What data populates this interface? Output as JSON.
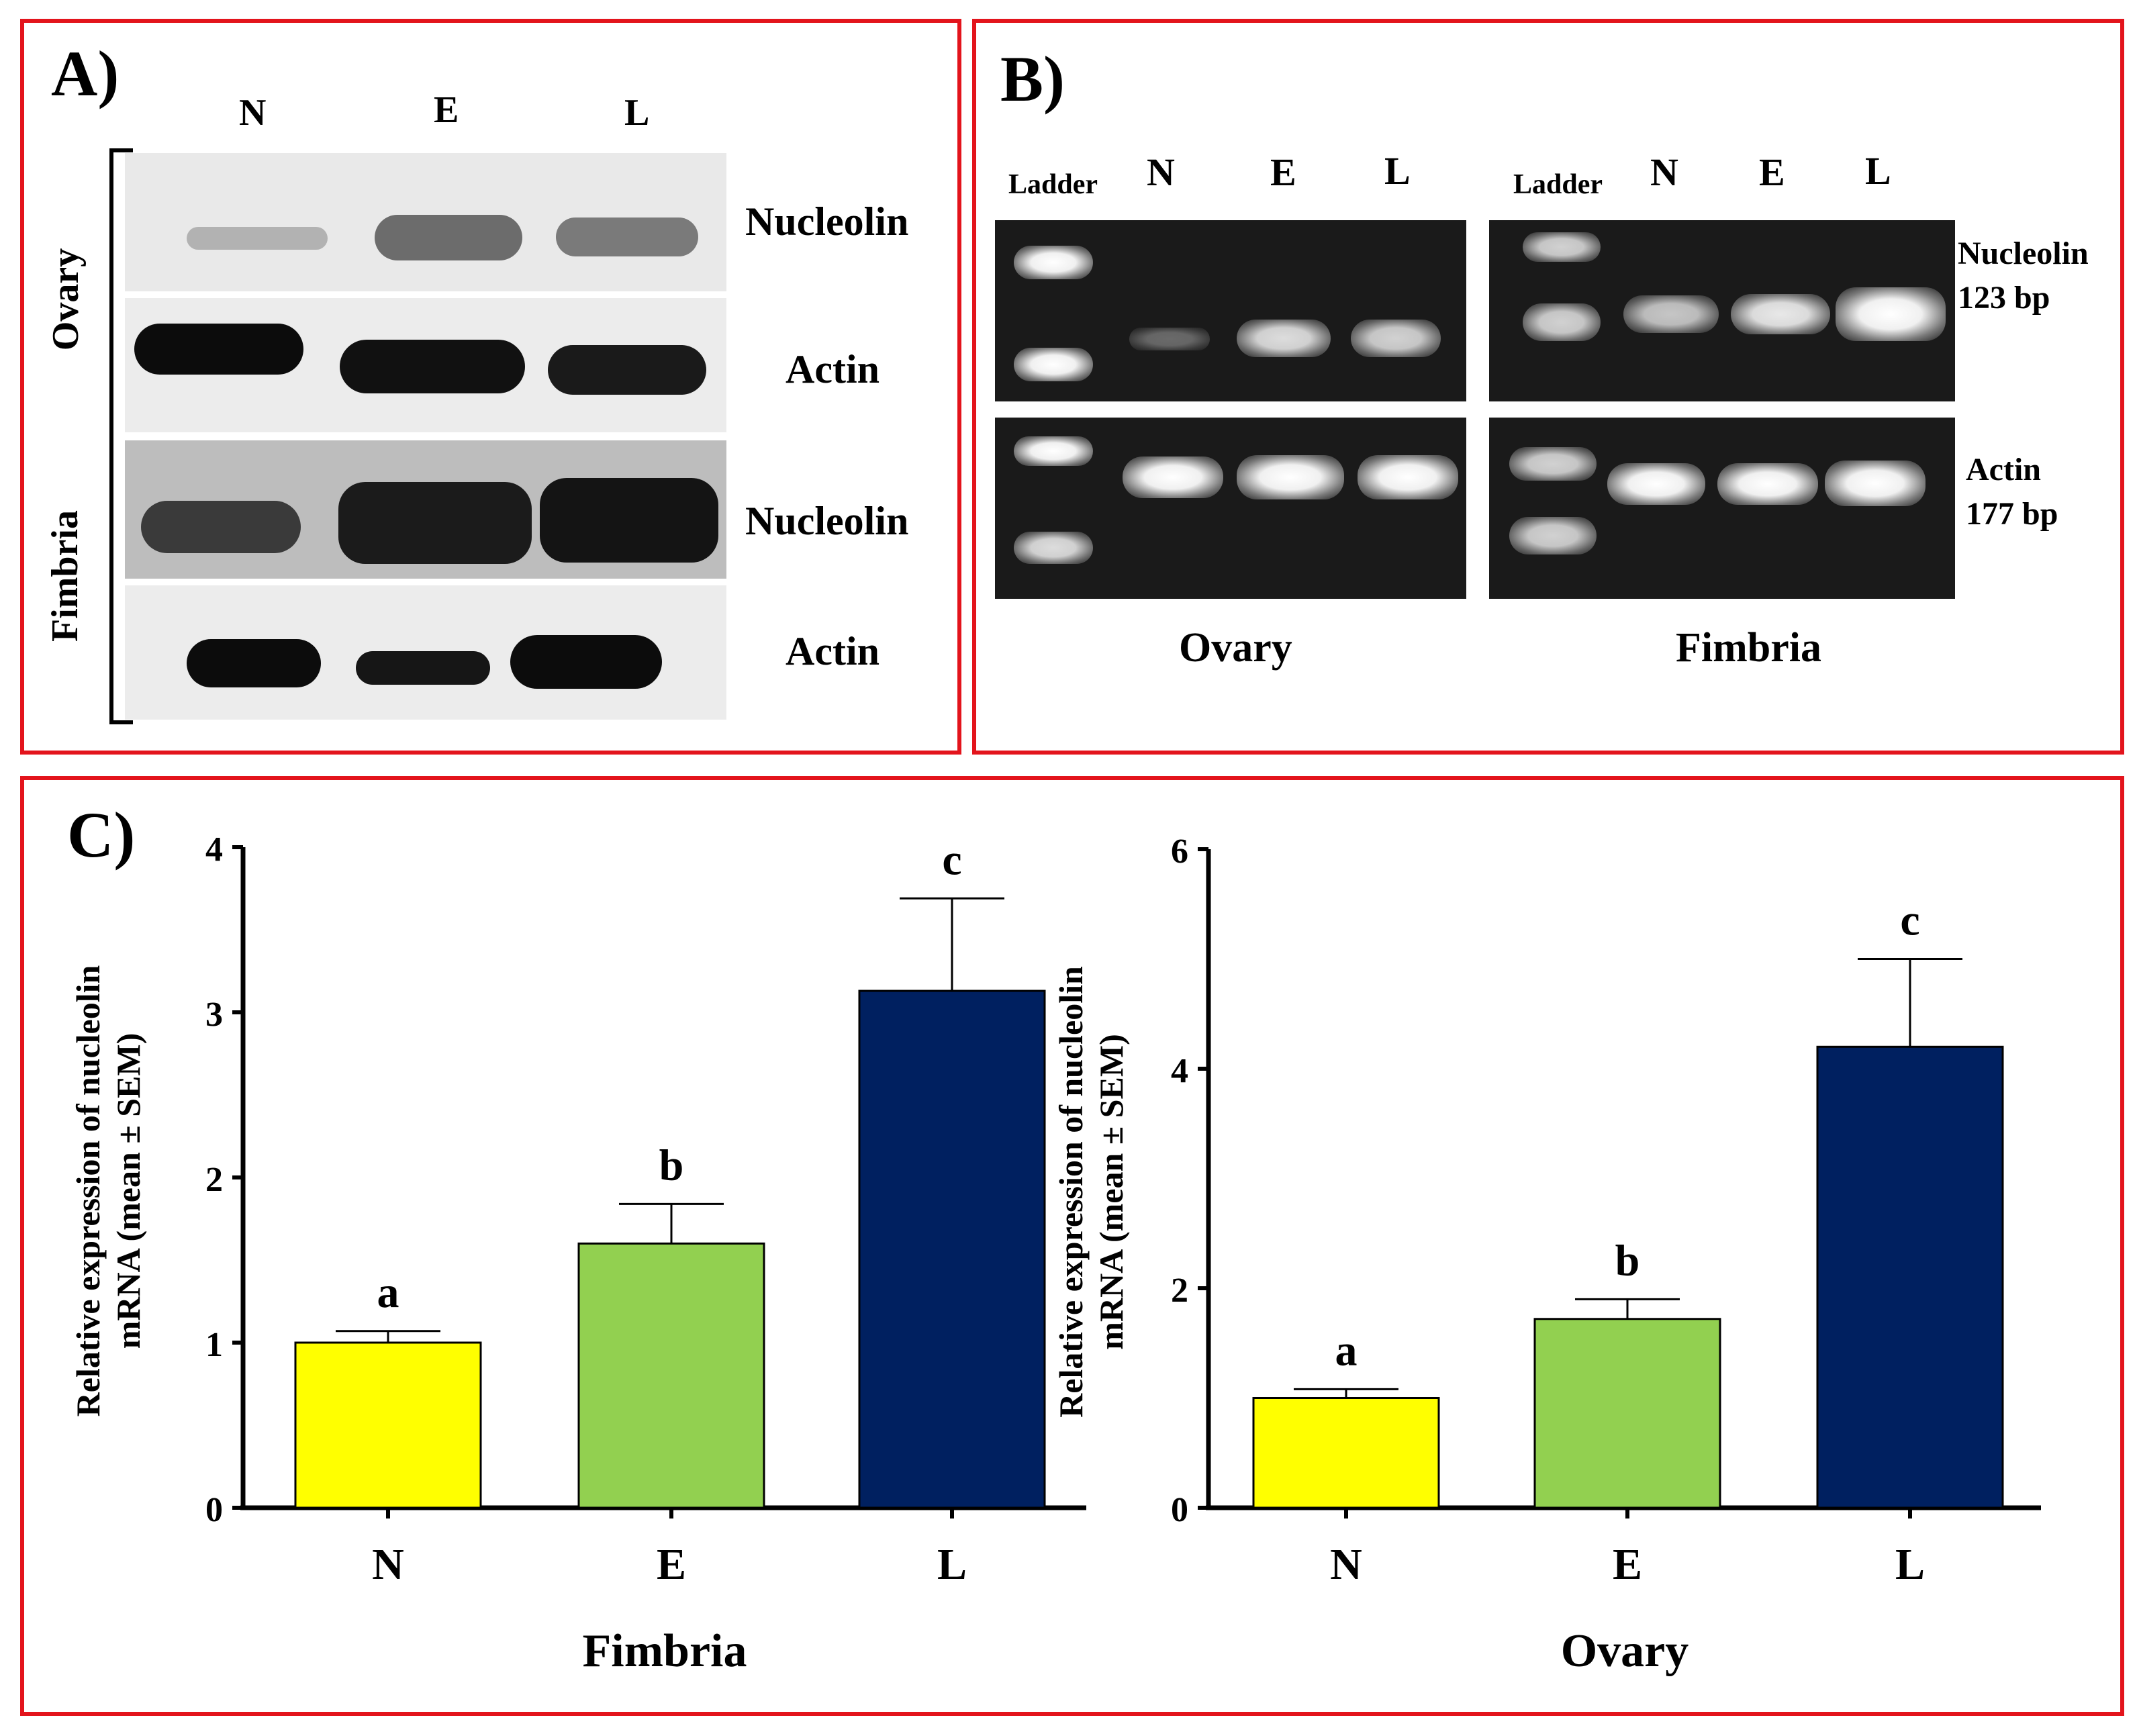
{
  "panelA": {
    "label": "A)",
    "lanes": [
      "N",
      "E",
      "L"
    ],
    "groups": [
      "Ovary",
      "Fimbria"
    ],
    "rows": [
      "Nucleolin",
      "Actin",
      "Nucleolin",
      "Actin"
    ]
  },
  "panelB": {
    "label": "B)",
    "ovary": {
      "ladder": "Ladder",
      "lanes": [
        "N",
        "E",
        "L"
      ],
      "caption": "Ovary"
    },
    "fimbria": {
      "ladder": "Ladder",
      "lanes": [
        "N",
        "E",
        "L"
      ],
      "caption": "Fimbria"
    },
    "right_labels": {
      "nucleolin": "Nucleolin",
      "nucleolin_bp": "123 bp",
      "actin": "Actin",
      "actin_bp": "177 bp"
    }
  },
  "panelC": {
    "label": "C)"
  },
  "colors": {
    "panel_border": "#e3141c",
    "N": "#ffff00",
    "E": "#92d050",
    "L": "#002060"
  },
  "chart_data": [
    {
      "type": "bar",
      "title": "Fimbria",
      "xlabel": "Fimbria",
      "ylabel_line1": "Relative expression of nucleolin",
      "ylabel_line2": "mRNA (mean ± SEM)",
      "categories": [
        "N",
        "E",
        "L"
      ],
      "values": [
        1.0,
        1.6,
        3.13
      ],
      "errors": [
        0.07,
        0.24,
        0.56
      ],
      "significance": [
        "a",
        "b",
        "c"
      ],
      "yticks": [
        "0",
        "1",
        "2",
        "3",
        "4"
      ],
      "ylim": [
        0,
        4
      ]
    },
    {
      "type": "bar",
      "title": "Ovary",
      "xlabel": "Ovary",
      "ylabel_line1": "Relative expression of nucleolin",
      "ylabel_line2": "mRNA (mean ± SEM)",
      "categories": [
        "N",
        "E",
        "L"
      ],
      "values": [
        1.0,
        1.72,
        4.2
      ],
      "errors": [
        0.08,
        0.18,
        0.8
      ],
      "significance": [
        "a",
        "b",
        "c"
      ],
      "yticks": [
        "0",
        "2",
        "4",
        "6"
      ],
      "ylim": [
        0,
        6
      ]
    }
  ]
}
